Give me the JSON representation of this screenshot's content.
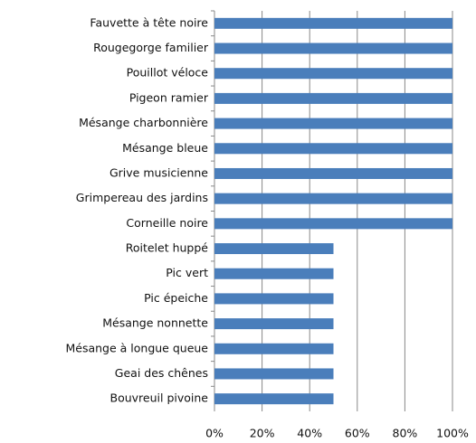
{
  "chart_data": {
    "type": "bar",
    "orientation": "horizontal",
    "categories": [
      "Fauvette à tête noire",
      "Rougegorge familier",
      "Pouillot véloce",
      "Pigeon ramier",
      "Mésange charbonnière",
      "Mésange bleue",
      "Grive musicienne",
      "Grimpereau des jardins",
      "Corneille noire",
      "Roitelet huppé",
      "Pic vert",
      "Pic épeiche",
      "Mésange nonnette",
      "Mésange à longue queue",
      "Geai des chênes",
      "Bouvreuil pivoine"
    ],
    "values": [
      100,
      100,
      100,
      100,
      100,
      100,
      100,
      100,
      100,
      50,
      50,
      50,
      50,
      50,
      50,
      50
    ],
    "color": "#4a7ebb",
    "xlim": [
      0,
      100
    ],
    "xticks": [
      {
        "value": 0,
        "label": "0%"
      },
      {
        "value": 20,
        "label": "20%"
      },
      {
        "value": 40,
        "label": "40%"
      },
      {
        "value": 60,
        "label": "60%"
      },
      {
        "value": 80,
        "label": "80%"
      },
      {
        "value": 100,
        "label": "100%"
      }
    ],
    "grid": true
  }
}
